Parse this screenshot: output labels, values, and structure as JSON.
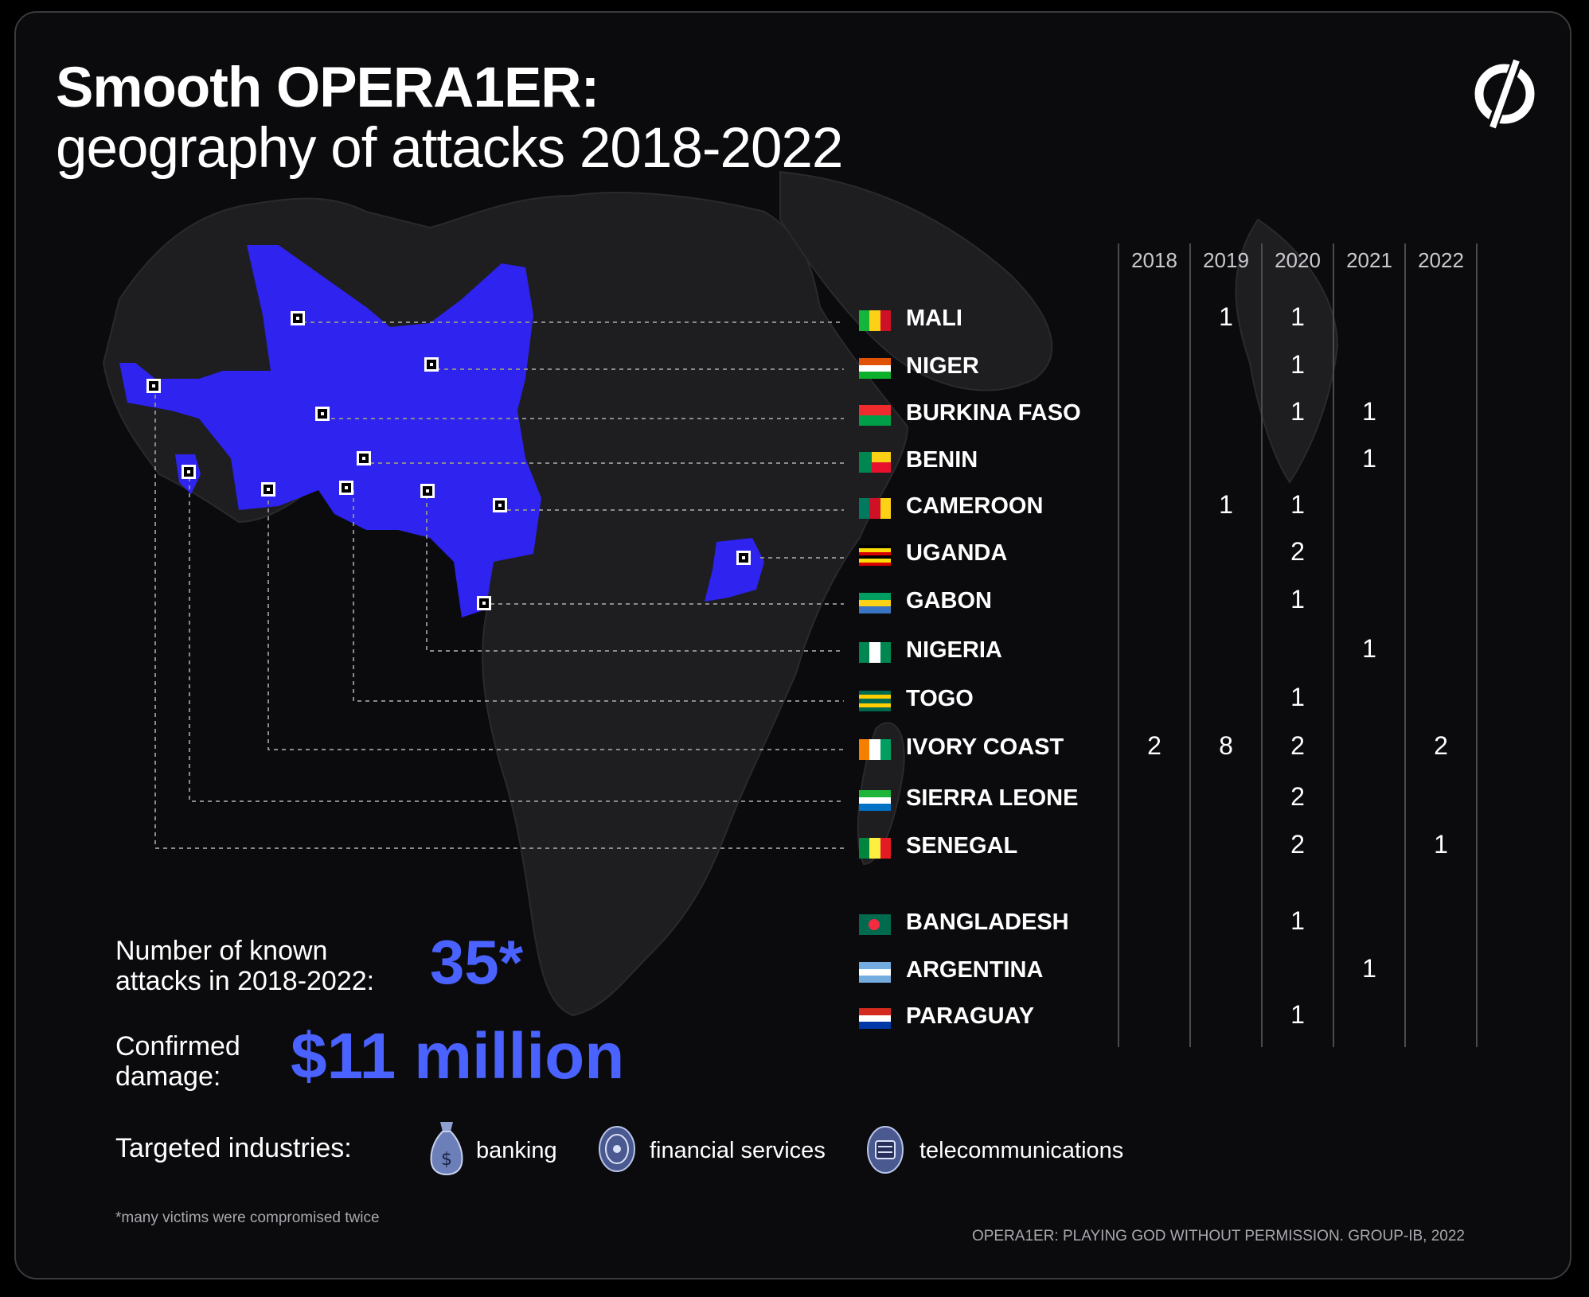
{
  "title": {
    "line1": "Smooth OPERA1ER:",
    "line2": "geography of attacks 2018-2022"
  },
  "logo": "group-ib-logo",
  "years": [
    "2018",
    "2019",
    "2020",
    "2021",
    "2022"
  ],
  "countries": [
    {
      "name": "MALI",
      "counts": {
        "2019": "1",
        "2020": "1"
      }
    },
    {
      "name": "NIGER",
      "counts": {
        "2020": "1"
      }
    },
    {
      "name": "BURKINA FASO",
      "counts": {
        "2020": "1",
        "2021": "1"
      }
    },
    {
      "name": "BENIN",
      "counts": {
        "2021": "1"
      }
    },
    {
      "name": "CAMEROON",
      "counts": {
        "2019": "1",
        "2020": "1"
      }
    },
    {
      "name": "UGANDA",
      "counts": {
        "2020": "2"
      }
    },
    {
      "name": "GABON",
      "counts": {
        "2020": "1"
      }
    },
    {
      "name": "NIGERIA",
      "counts": {
        "2021": "1"
      }
    },
    {
      "name": "TOGO",
      "counts": {
        "2020": "1"
      }
    },
    {
      "name": "IVORY COAST",
      "counts": {
        "2018": "2",
        "2019": "8",
        "2020": "2",
        "2022": "2"
      }
    },
    {
      "name": "SIERRA LEONE",
      "counts": {
        "2020": "2"
      }
    },
    {
      "name": "SENEGAL",
      "counts": {
        "2020": "2",
        "2022": "1"
      }
    },
    {
      "name": "BANGLADESH",
      "counts": {
        "2020": "1"
      }
    },
    {
      "name": "ARGENTINA",
      "counts": {
        "2021": "1"
      }
    },
    {
      "name": "PARAGUAY",
      "counts": {
        "2020": "1"
      }
    }
  ],
  "stats": {
    "attacks_label_1": "Number of known",
    "attacks_label_2": "attacks in 2018-2022:",
    "attacks_value": "35*",
    "damage_label_1": "Confirmed",
    "damage_label_2": "damage:",
    "damage_value": "$11 million"
  },
  "industries": {
    "label": "Targeted industries:",
    "items": [
      {
        "label": "banking",
        "icon": "money-bag-icon"
      },
      {
        "label": "financial services",
        "icon": "coin-icon"
      },
      {
        "label": "telecommunications",
        "icon": "sim-card-icon"
      }
    ]
  },
  "footnote": "*many victims were compromised twice",
  "source": "OPERA1ER: PLAYING GOD WITHOUT PERMISSION. GROUP-IB, 2022",
  "colors": {
    "background": "#0b0b0d",
    "land": "#1e1e21",
    "highlight": "#2f23f0",
    "accent": "#4a62ff",
    "text": "#ffffff"
  }
}
